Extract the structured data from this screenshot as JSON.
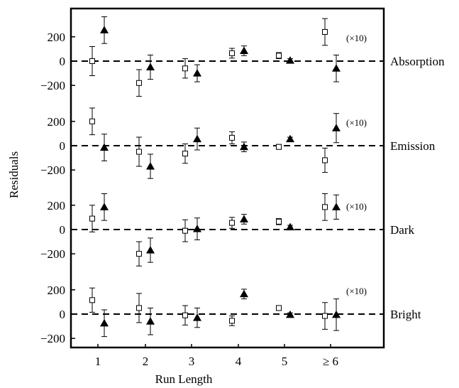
{
  "chart_data": {
    "type": "scatter",
    "xlabel": "Run Length",
    "ylabel": "Residuals",
    "categories": [
      "1",
      "2",
      "3",
      "4",
      "5",
      "≥ 6"
    ],
    "ylim": [
      -230,
      350
    ],
    "yticks": [
      200,
      0,
      -200
    ],
    "ytick_labels": [
      "200",
      "0",
      "−200"
    ],
    "multiplier_note": "(×10)",
    "grid": false,
    "panels": [
      {
        "name": "Absorption",
        "series": [
          {
            "marker": "open-square",
            "values": [
              0,
              -180,
              -60,
              65,
              45,
              240
            ],
            "errors": [
              120,
              110,
              80,
              40,
              25,
              110
            ]
          },
          {
            "marker": "filled-triangle",
            "values": [
              255,
              -50,
              -100,
              85,
              5,
              -60
            ],
            "errors": [
              110,
              100,
              70,
              40,
              15,
              110
            ]
          }
        ]
      },
      {
        "name": "Emission",
        "series": [
          {
            "marker": "open-square",
            "values": [
              200,
              -50,
              -65,
              65,
              -10,
              -120
            ],
            "errors": [
              110,
              120,
              80,
              50,
              20,
              100
            ]
          },
          {
            "marker": "filled-triangle",
            "values": [
              -15,
              -170,
              55,
              -10,
              55,
              145
            ],
            "errors": [
              110,
              100,
              90,
              40,
              15,
              120
            ]
          }
        ]
      },
      {
        "name": "Dark",
        "series": [
          {
            "marker": "open-square",
            "values": [
              90,
              -200,
              -10,
              55,
              65,
              185
            ],
            "errors": [
              110,
              100,
              90,
              45,
              25,
              110
            ]
          },
          {
            "marker": "filled-triangle",
            "values": [
              185,
              -170,
              5,
              85,
              20,
              185
            ],
            "errors": [
              110,
              100,
              90,
              40,
              15,
              100
            ]
          }
        ]
      },
      {
        "name": "Bright",
        "series": [
          {
            "marker": "open-square",
            "values": [
              115,
              50,
              -10,
              -55,
              50,
              -15
            ],
            "errors": [
              100,
              120,
              80,
              40,
              20,
              110
            ]
          },
          {
            "marker": "filled-triangle",
            "values": [
              -75,
              -60,
              -30,
              165,
              -5,
              -5
            ],
            "errors": [
              110,
              110,
              80,
              40,
              15,
              130
            ]
          }
        ]
      }
    ]
  }
}
